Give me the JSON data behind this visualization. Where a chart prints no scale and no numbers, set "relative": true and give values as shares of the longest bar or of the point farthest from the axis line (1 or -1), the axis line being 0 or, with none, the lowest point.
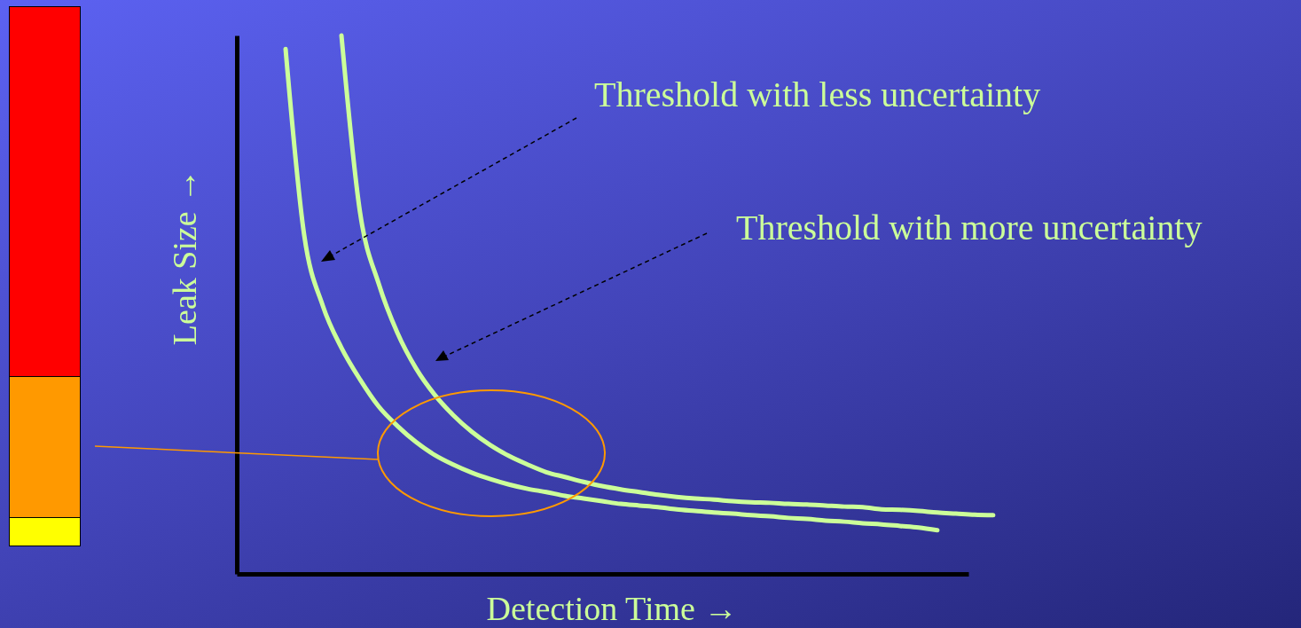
{
  "chart_data": {
    "type": "line",
    "xlabel": "Detection Time →",
    "ylabel": "Leak Size →",
    "relative": true,
    "categories": [
      null,
      null,
      null,
      null,
      null,
      null,
      null,
      null,
      null,
      null,
      null,
      null,
      null,
      null,
      null,
      null,
      null,
      null,
      null,
      null,
      null,
      null,
      null,
      null,
      null,
      null,
      null,
      null,
      null,
      null,
      null,
      null,
      null,
      null,
      null,
      null,
      null,
      null,
      null
    ],
    "series": [
      {
        "color": "#ccff99",
        "values": [
          0.975,
          0.629,
          0.498,
          0.42,
          0.361,
          0.311,
          0.275,
          0.245,
          0.221,
          0.203,
          0.188,
          0.176,
          0.166,
          0.158,
          0.152,
          0.145,
          0.14,
          0.135,
          0.13,
          0.127,
          0.124,
          0.12,
          0.117,
          0.114,
          0.112,
          0.109,
          0.107,
          0.104,
          0.102,
          0.099,
          0.097,
          0.094,
          0.092,
          0.089,
          0.086,
          0.081,
          null,
          null,
          null
        ]
      },
      {
        "color": "#ccff99",
        "values": [
          null,
          null,
          null,
          1,
          0.671,
          0.539,
          0.448,
          0.382,
          0.333,
          0.295,
          0.264,
          0.239,
          0.219,
          0.203,
          0.189,
          0.18,
          0.171,
          0.163,
          0.157,
          0.152,
          0.147,
          0.143,
          0.14,
          0.138,
          0.135,
          0.133,
          0.132,
          0.13,
          0.129,
          0.127,
          0.125,
          0.124,
          0.12,
          0.119,
          0.117,
          0.114,
          0.112,
          0.11,
          0.109
        ]
      }
    ],
    "annotations": [
      "Threshold with less uncertainty",
      "Threshold with more uncertainty"
    ]
  }
}
